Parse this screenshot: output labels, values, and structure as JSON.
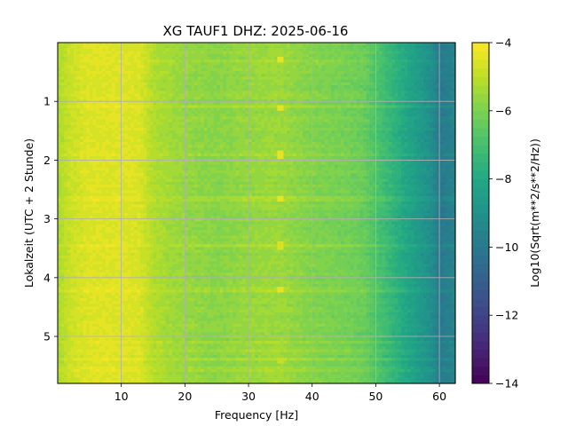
{
  "chart_data": {
    "type": "heatmap",
    "title": "XG TAUF1  DHZ: 2025-06-16",
    "xlabel": "Frequency [Hz]",
    "ylabel": "Lokalzeit (UTC + 2 Stunde)",
    "colorbar_label": "Log10(Sqrt(m**2/s**2/Hz))",
    "colormap": "viridis",
    "xlim": [
      0,
      62.5
    ],
    "ylim": [
      5.8,
      0
    ],
    "clim": [
      -14,
      -4
    ],
    "x_ticks": [
      10,
      20,
      30,
      40,
      50,
      60
    ],
    "x_tick_labels": [
      "10",
      "20",
      "30",
      "40",
      "50",
      "60"
    ],
    "y_ticks": [
      1,
      2,
      3,
      4,
      5
    ],
    "y_tick_labels": [
      "1",
      "2",
      "3",
      "4",
      "5"
    ],
    "colorbar_ticks": [
      -14,
      -12,
      -10,
      -8,
      -6,
      -4
    ],
    "colorbar_tick_labels": [
      "−14",
      "−12",
      "−10",
      "−8",
      "−6",
      "−4"
    ],
    "colorbar_levels": 40,
    "grid": true,
    "spectrum_profile": [
      {
        "f": 0,
        "value": -5.3
      },
      {
        "f": 2,
        "value": -4.8
      },
      {
        "f": 5,
        "value": -4.5
      },
      {
        "f": 10,
        "value": -4.5
      },
      {
        "f": 13,
        "value": -4.6
      },
      {
        "f": 15,
        "value": -5.2
      },
      {
        "f": 20,
        "value": -5.6
      },
      {
        "f": 25,
        "value": -5.8
      },
      {
        "f": 30,
        "value": -5.6
      },
      {
        "f": 35,
        "value": -5.5
      },
      {
        "f": 40,
        "value": -5.9
      },
      {
        "f": 45,
        "value": -6.1
      },
      {
        "f": 48,
        "value": -6.3
      },
      {
        "f": 50,
        "value": -6.8
      },
      {
        "f": 53,
        "value": -7.6
      },
      {
        "f": 56,
        "value": -8.4
      },
      {
        "f": 59,
        "value": -9.2
      },
      {
        "f": 60,
        "value": -10.0
      },
      {
        "f": 62.5,
        "value": -9.5
      }
    ],
    "peaks": [
      {
        "f": 35,
        "t": 0.3,
        "value": -4.3
      },
      {
        "f": 35,
        "t": 1.1,
        "value": -4.3
      },
      {
        "f": 35,
        "t": 1.9,
        "value": -4.5
      },
      {
        "f": 35,
        "t": 2.65,
        "value": -4.4
      },
      {
        "f": 35,
        "t": 3.45,
        "value": -4.6
      },
      {
        "f": 35,
        "t": 4.2,
        "value": -4.5
      },
      {
        "f": 35,
        "t": 5.4,
        "value": -4.8
      }
    ],
    "high_noise_times": [
      0.3,
      1.1,
      1.9,
      2.65,
      3.45,
      4.2,
      5.1,
      5.25,
      5.4,
      5.55
    ]
  }
}
